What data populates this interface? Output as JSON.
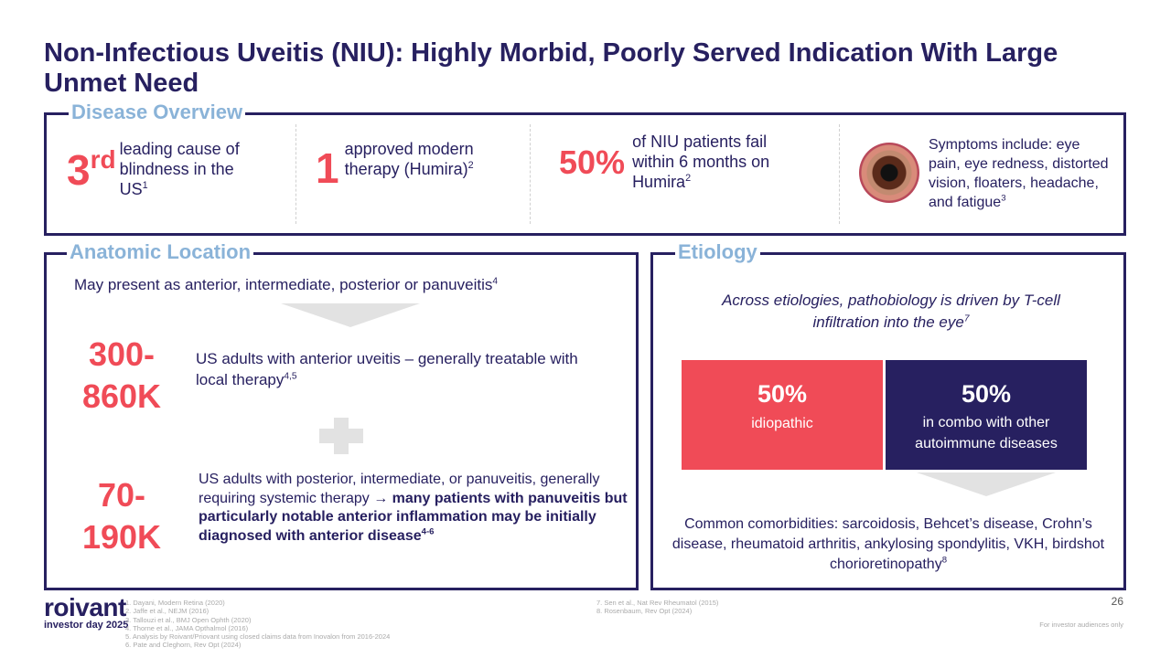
{
  "title": "Non-Infectious Uveitis (NIU): Highly Morbid, Poorly Served Indication With Large Unmet Need",
  "overview": {
    "label": "Disease Overview",
    "stat1": {
      "big": "3",
      "sup": "rd",
      "text": "leading cause of blindness in the US",
      "ref": "1"
    },
    "stat2": {
      "big": "1",
      "text": "approved modern therapy (Humira)",
      "ref": "2"
    },
    "stat3": {
      "big": "50%",
      "text": "of NIU patients fail within 6 months on Humira",
      "ref": "2"
    },
    "stat4": {
      "text": "Symptoms include: eye pain, eye redness, distorted vision, floaters, headache, and fatigue",
      "ref": "3"
    }
  },
  "anatomic": {
    "label": "Anatomic Location",
    "intro": "May present as anterior, intermediate, posterior or panuveitis",
    "intro_ref": "4",
    "row1": {
      "big1": "300-",
      "big2": "860K",
      "text": "US adults with anterior uveitis – generally treatable with local therapy",
      "ref": "4,5"
    },
    "row2": {
      "big1": "70-",
      "big2": "190K",
      "text": "US adults with posterior, intermediate, or panuveitis, generally requiring systemic therapy → ",
      "bold": "many patients with panuveitis but particularly notable anterior inflammation may be initially diagnosed with anterior disease",
      "ref": "4-6"
    }
  },
  "etiology": {
    "label": "Etiology",
    "intro": "Across etiologies, pathobiology is driven by T-cell infiltration into the eye",
    "intro_ref": "7",
    "left": {
      "pct": "50%",
      "text": "idiopathic"
    },
    "right": {
      "pct": "50%",
      "text": "in combo with other autoimmune diseases"
    },
    "comorbid": "Common comorbidities: sarcoidosis, Behcet’s disease, Crohn’s disease, rheumatoid arthritis, ankylosing spondylitis, VKH, birdshot chorioretinopathy",
    "comorbid_ref": "8"
  },
  "footer": {
    "logo": "roivant",
    "logo_sub": "investor day 2025",
    "refs_left": [
      "1. Dayani, Modern Retina (2020)",
      "2. Jaffe et al., NEJM (2016)",
      "3. Tallouzi et al., BMJ Open Ophth (2020)",
      "4. Thorne et al., JAMA Opthalmol (2016)",
      "5. Analysis by Roivant/Priovant using closed claims data from Inovalon from 2016-2024",
      "6. Pate and Cleghorn, Rev Opt (2024)"
    ],
    "refs_right": [
      "7. Sen et al., Nat Rev Rheumatol (2015)",
      "8. Rosenbaum, Rev Opt (2024)"
    ],
    "page": "26",
    "disclaimer": "For investor audiences only"
  },
  "colors": {
    "navy": "#272060",
    "red": "#f04b57",
    "label": "#8ab3d8"
  }
}
